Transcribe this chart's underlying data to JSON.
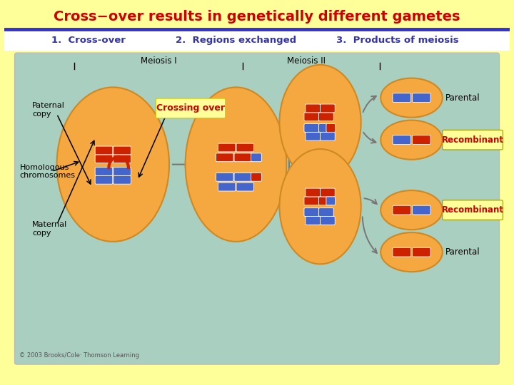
{
  "title": "Cross−over results in genetically different gametes",
  "title_color": "#CC0000",
  "title_bg": "#FFFF99",
  "header_line_color": "#3333CC",
  "step1": "1.  Cross-over",
  "step2": "2.  Regions exchanged",
  "step3": "3.  Products of meiosis",
  "steps_color": "#3333AA",
  "bg_rect_color": "#A8CFC0",
  "meiosis1_label": "Meiosis I",
  "meiosis2_label": "Meiosis II",
  "label_paternal": "Paternal\ncopy",
  "label_maternal": "Maternal\ncopy",
  "label_homologous": "Homologous\nchromosomes",
  "label_crossing": "Crossing over",
  "label_parental1": "Parental",
  "label_recomb1": "Recombinant",
  "label_recomb2": "Recombinant",
  "label_parental2": "Parental",
  "recomb_bg": "#FFFF99",
  "recomb_text": "#CC0000",
  "chr_blue": "#4466CC",
  "chr_red": "#CC2200",
  "cell_color": "#F5A840",
  "cell_edge": "#D08820",
  "arrow_color": "#777777",
  "copyright": "© 2003 Brooks/Cole· Thomson Learning"
}
